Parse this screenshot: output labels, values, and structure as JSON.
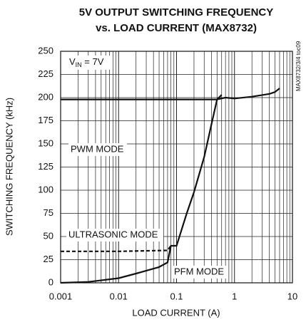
{
  "chart_data": {
    "type": "line",
    "title": [
      "5V OUTPUT SWITCHING FREQUENCY",
      "vs. LOAD CURRENT (MAX8732)"
    ],
    "xlabel": "LOAD CURRENT (A)",
    "ylabel": "SWITCHING FREQUENCY (kHz)",
    "xscale": "log",
    "xlim": [
      0.001,
      10
    ],
    "ylim": [
      0,
      250
    ],
    "xticks": [
      0.001,
      0.01,
      0.1,
      1,
      10
    ],
    "yticks": [
      0,
      25,
      50,
      75,
      100,
      125,
      150,
      175,
      200,
      225,
      250
    ],
    "grid": true,
    "annotations": {
      "vin": [
        "V",
        "IN",
        " = 7V"
      ],
      "pwm": "PWM MODE",
      "ultrasonic": "ULTRASONIC MODE",
      "pfm": "PFM MODE",
      "side": "MAX8732/3/4 toc09"
    },
    "series": [
      {
        "name": "PWM MODE",
        "color": "#111111",
        "dash": false,
        "x": [
          0.001,
          0.01,
          0.1,
          0.5,
          0.7,
          1,
          2,
          4,
          5,
          6
        ],
        "values": [
          198,
          198,
          198,
          198,
          200,
          199,
          201,
          204,
          206,
          210
        ]
      },
      {
        "name": "PFM MODE",
        "color": "#111111",
        "dash": false,
        "x": [
          0.001,
          0.003,
          0.01,
          0.02,
          0.05,
          0.07,
          0.08,
          0.1,
          0.15,
          0.2,
          0.3,
          0.4,
          0.5,
          0.6
        ],
        "values": [
          0,
          1,
          5,
          10,
          17,
          22,
          40,
          40,
          75,
          98,
          136,
          171,
          198,
          203
        ]
      },
      {
        "name": "ULTRASONIC MODE",
        "color": "#111111",
        "dash": true,
        "x": [
          0.001,
          0.01,
          0.07,
          0.08
        ],
        "values": [
          34,
          34,
          35,
          40
        ]
      }
    ]
  }
}
